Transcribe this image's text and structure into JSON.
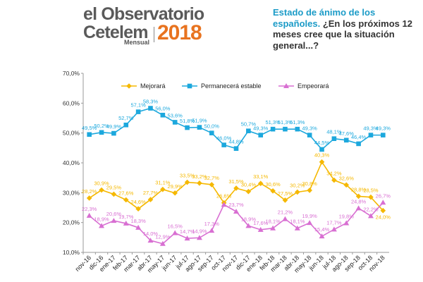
{
  "brand": {
    "line1": "el Observatorio",
    "line2": "Cetelem",
    "year": "2018",
    "edition": "Mensual"
  },
  "heading": {
    "highlight": "Estado de ánimo de los españoles.",
    "question": " ¿En los próximos 12 meses cree que la situación general...?"
  },
  "chart_data": {
    "type": "line",
    "categories": [
      "nov-16",
      "dic-16",
      "ene-17",
      "feb-17",
      "mar-17",
      "abr-17",
      "may-17",
      "jun-17",
      "jul-17",
      "ago-17",
      "sep-17",
      "oct-17",
      "nov-17",
      "dic-17",
      "ene-18",
      "feb-18",
      "mar-18",
      "abr-18",
      "may-18",
      "jun-18",
      "jul-18",
      "ago-18",
      "sep-18",
      "oct-18",
      "nov-18"
    ],
    "y_ticks": [
      "10,0%",
      "20,0%",
      "30,0%",
      "40,0%",
      "50,0%",
      "60,0%",
      "70,0%"
    ],
    "ylim": [
      10,
      70
    ],
    "grid": false,
    "legend": "top",
    "series": [
      {
        "name": "Mejorará",
        "color": "#f5b800",
        "marker": "diamond",
        "values": [
          28.2,
          30.9,
          29.5,
          27.6,
          24.6,
          27.7,
          31.1,
          29.9,
          33.5,
          33.2,
          32.7,
          26.6,
          31.5,
          30.4,
          33.1,
          30.6,
          27.5,
          30.2,
          30.8,
          40.3,
          34.2,
          32.6,
          28.8,
          28.5,
          24.0
        ],
        "labels": [
          "28,2%",
          "30,9%",
          "29,5%",
          "27,6%",
          "24,6%",
          "27,7%",
          "31,1%",
          "29,9%",
          "33,5%",
          "33,2%",
          "32,7%",
          "26,6%",
          "31,5%",
          "30,4%",
          "33,1%",
          "30,6%",
          "27,5%",
          "30,2%",
          "30,8%",
          "40,3%",
          "34,2%",
          "32,6%",
          "28,8%",
          "28,5%",
          "24,0%"
        ]
      },
      {
        "name": "Permanecerá estable",
        "color": "#1ca8dd",
        "marker": "square",
        "values": [
          49.5,
          50.2,
          49.9,
          52.7,
          57.1,
          58.3,
          56.0,
          53.6,
          51.8,
          51.9,
          50.0,
          46.0,
          44.8,
          50.7,
          49.3,
          51.3,
          51.3,
          51.3,
          49.3,
          44.5,
          48.1,
          47.6,
          46.4,
          49.3,
          49.3
        ],
        "labels": [
          "49,5%",
          "50,2%",
          "49,9%",
          "52,7%",
          "57,1%",
          "58,3%",
          "56,0%",
          "53,6%",
          "51,8%",
          "51,9%",
          "50,0%",
          "46,0%",
          "44,8%",
          "50,7%",
          "49,3%",
          "51,3%",
          "51,3%",
          "51,3%",
          "49,3%",
          "44,5%",
          "48,1%",
          "47,6%",
          "46,4%",
          "49,3%",
          "49,3%"
        ]
      },
      {
        "name": "Empeorará",
        "color": "#d86fd2",
        "marker": "triangle",
        "values": [
          22.3,
          18.9,
          20.6,
          19.7,
          18.3,
          14.0,
          12.9,
          16.5,
          14.7,
          14.9,
          17.3,
          26.0,
          23.7,
          18.9,
          17.6,
          18.1,
          21.2,
          18.1,
          19.9,
          15.4,
          17.7,
          19.8,
          24.8,
          22.2,
          26.7
        ],
        "labels": [
          "22,3%",
          "18,9%",
          "20,6%",
          "19,7%",
          "18,3%",
          "14,0%",
          "12,9%",
          "16,5%",
          "14,7%",
          "14,9%",
          "17,3%",
          "",
          "23,7%",
          "18,9%",
          "17,6%",
          "18,1%",
          "21,2%",
          "18,1%",
          "19,9%",
          "15,4%",
          "17,7%",
          "19,8%",
          "24,8%",
          "22,2%",
          "26,7%"
        ]
      }
    ]
  }
}
